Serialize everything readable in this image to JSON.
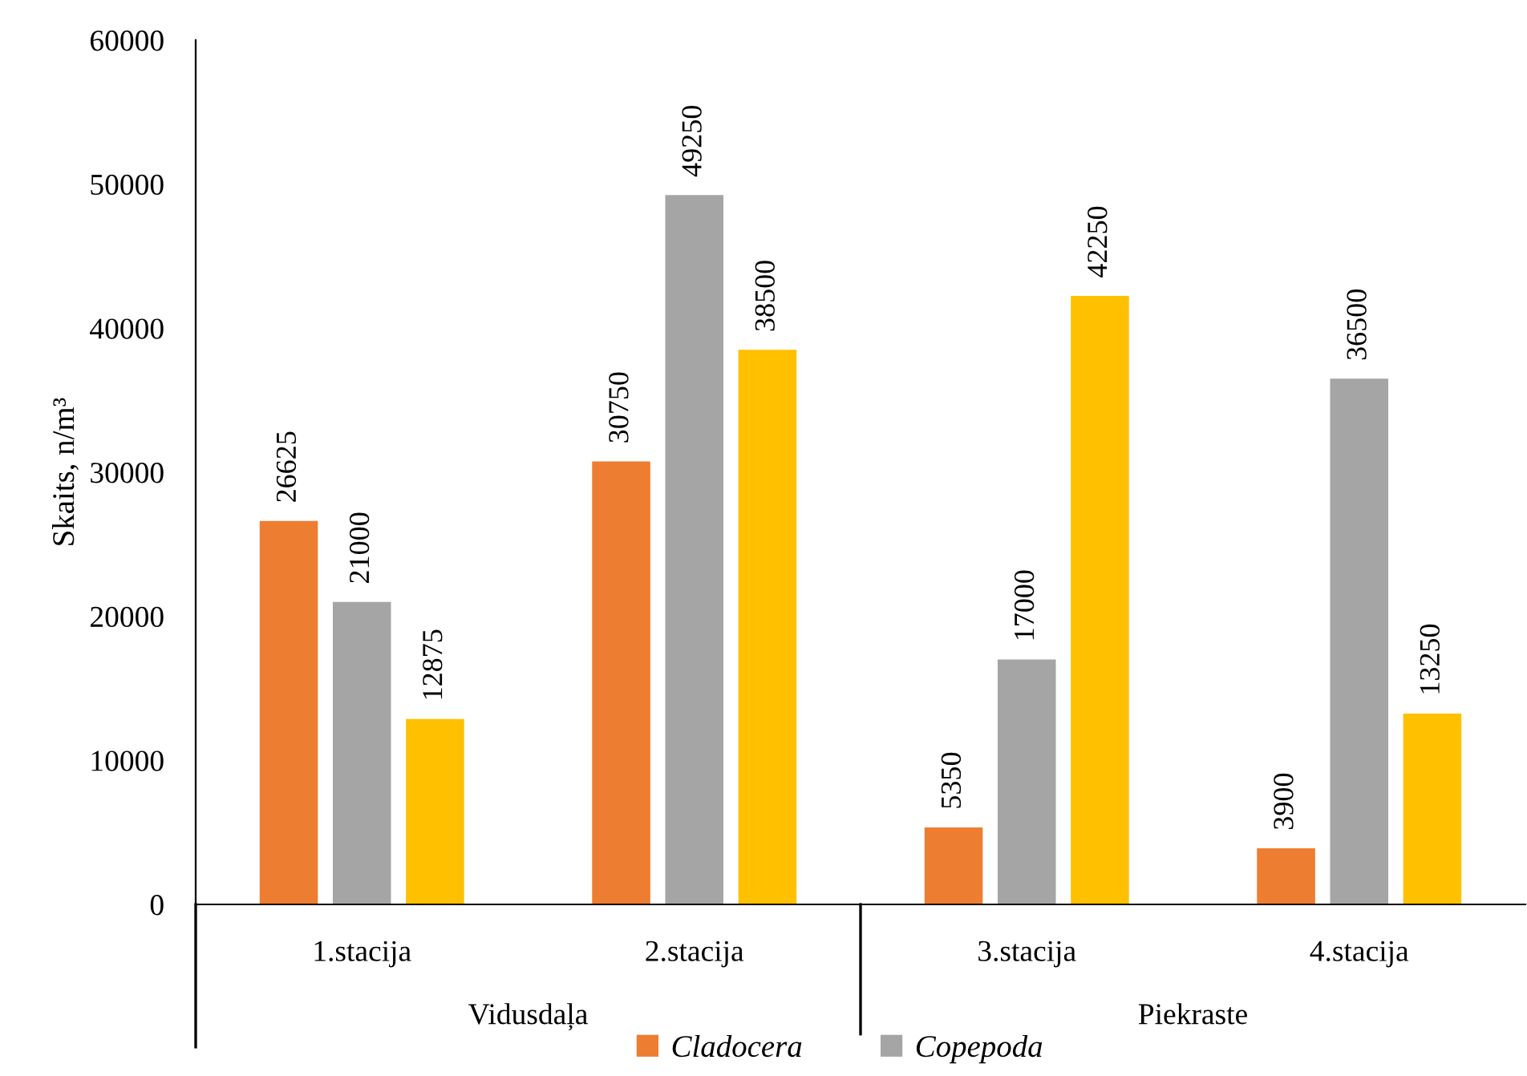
{
  "chart_data": {
    "type": "bar",
    "ylabel": "Skaits, n/m³",
    "categories": [
      "1.stacija",
      "2.stacija",
      "3.stacija",
      "4.stacija"
    ],
    "series": [
      {
        "name": "Cladocera",
        "color": "#ed7d31",
        "values": [
          26625,
          30750,
          5350,
          3900
        ]
      },
      {
        "name": "Copepoda",
        "color": "#a5a5a5",
        "values": [
          21000,
          49250,
          17000,
          36500
        ]
      },
      {
        "color": "#ffc000",
        "values": [
          12875,
          38500,
          42250,
          13250
        ]
      }
    ],
    "annotations": [
      "Vidusdaļa",
      "Piekraste"
    ],
    "ylim": [
      0,
      60000
    ],
    "yticks": [
      0,
      10000,
      20000,
      30000,
      40000,
      50000,
      60000
    ],
    "data_labels": true,
    "grid": false,
    "legend": "bottom"
  }
}
